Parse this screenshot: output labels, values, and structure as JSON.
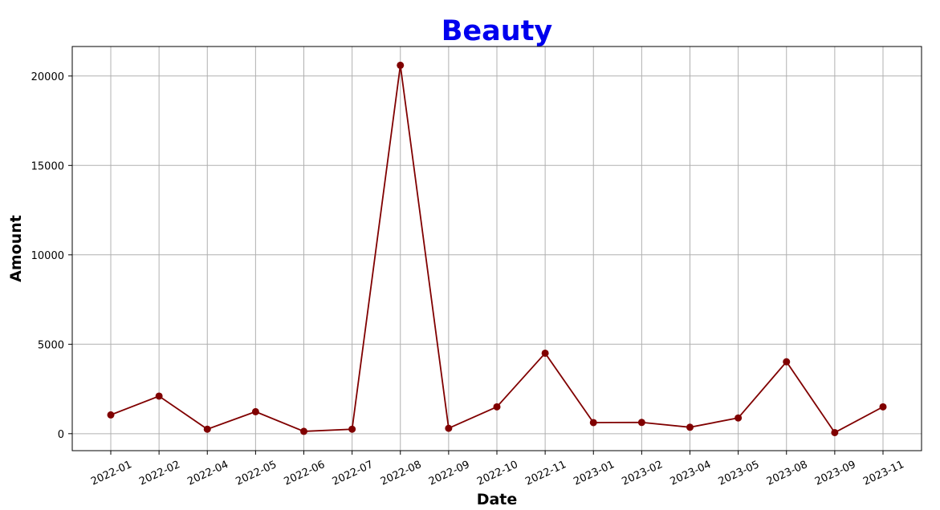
{
  "chart_data": {
    "type": "line",
    "title": "Beauty",
    "xlabel": "Date",
    "ylabel": "Amount",
    "categories": [
      "2022-01",
      "2022-02",
      "2022-04",
      "2022-05",
      "2022-06",
      "2022-07",
      "2022-08",
      "2022-09",
      "2022-10",
      "2022-11",
      "2023-01",
      "2023-02",
      "2023-04",
      "2023-05",
      "2023-08",
      "2023-09",
      "2023-11"
    ],
    "series": [
      {
        "values": [
          1050,
          2100,
          250,
          1230,
          130,
          250,
          20600,
          300,
          1500,
          4500,
          620,
          630,
          360,
          880,
          4020,
          60,
          1500
        ]
      }
    ],
    "yticks": [
      0,
      5000,
      10000,
      15000,
      20000
    ],
    "ylim": [
      -950,
      21650
    ],
    "grid": true,
    "colors": {
      "title": "#0000ee",
      "line": "#800000",
      "marker": "#800000",
      "grid": "#b0b0b0"
    }
  }
}
